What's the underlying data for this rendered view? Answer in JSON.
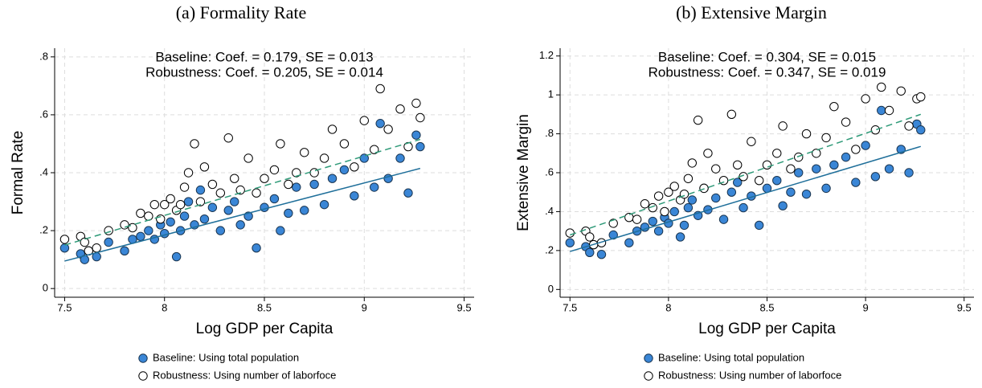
{
  "chart_data": [
    {
      "type": "scatter",
      "title": "(a)  Formality Rate",
      "annotations": [
        "Baseline: Coef. =  0.179, SE =  0.013",
        "Robustness: Coef. =  0.205, SE =  0.014"
      ],
      "xlabel": "Log GDP per Capita",
      "ylabel": "Formal Rate",
      "xlim": [
        7.45,
        9.55
      ],
      "xticks": [
        7.5,
        8,
        8.5,
        9,
        9.5
      ],
      "ylim": [
        -0.03,
        0.83
      ],
      "yticks": [
        0,
        {
          "value": 0.2,
          "label": ".2"
        },
        {
          "value": 0.4,
          "label": ".4"
        },
        {
          "value": 0.6,
          "label": ".6"
        },
        {
          "value": 0.8,
          "label": ".8"
        }
      ],
      "grid": true,
      "legend": "bottom",
      "x": [
        7.5,
        7.58,
        7.6,
        7.62,
        7.66,
        7.72,
        7.8,
        7.84,
        7.88,
        7.92,
        7.95,
        7.98,
        8.0,
        8.03,
        8.06,
        8.08,
        8.1,
        8.12,
        8.15,
        8.18,
        8.2,
        8.24,
        8.28,
        8.32,
        8.35,
        8.38,
        8.42,
        8.46,
        8.5,
        8.55,
        8.58,
        8.62,
        8.66,
        8.7,
        8.75,
        8.8,
        8.84,
        8.9,
        8.95,
        9.0,
        9.05,
        9.08,
        9.12,
        9.18,
        9.22,
        9.26,
        9.28
      ],
      "series": [
        {
          "name": "Baseline: Using total population",
          "color": "#3a86d6",
          "values": [
            0.14,
            0.12,
            0.1,
            0.13,
            0.11,
            0.16,
            0.13,
            0.17,
            0.18,
            0.2,
            0.17,
            0.22,
            0.19,
            0.23,
            0.11,
            0.2,
            0.25,
            0.3,
            0.22,
            0.34,
            0.24,
            0.28,
            0.2,
            0.27,
            0.3,
            0.22,
            0.25,
            0.14,
            0.28,
            0.31,
            0.2,
            0.26,
            0.35,
            0.27,
            0.36,
            0.29,
            0.38,
            0.41,
            0.32,
            0.45,
            0.35,
            0.57,
            0.38,
            0.45,
            0.33,
            0.53,
            0.49
          ]
        },
        {
          "name": "Robustness: Using number of laborfoce",
          "color": "#ffffff",
          "values": [
            0.17,
            0.18,
            0.16,
            0.13,
            0.14,
            0.2,
            0.22,
            0.21,
            0.26,
            0.25,
            0.29,
            0.24,
            0.29,
            0.31,
            0.27,
            0.29,
            0.35,
            0.4,
            0.5,
            0.3,
            0.42,
            0.36,
            0.33,
            0.52,
            0.38,
            0.34,
            0.45,
            0.33,
            0.38,
            0.41,
            0.5,
            0.36,
            0.4,
            0.47,
            0.4,
            0.45,
            0.55,
            0.5,
            0.42,
            0.58,
            0.48,
            0.69,
            0.55,
            0.62,
            0.49,
            0.64,
            0.59
          ]
        }
      ],
      "fits": [
        {
          "color": "#1f6f9a",
          "dash": false,
          "x": [
            7.5,
            9.28
          ],
          "values": [
            0.095,
            0.415
          ]
        },
        {
          "color": "#2e9a78",
          "dash": true,
          "x": [
            7.5,
            9.28
          ],
          "values": [
            0.15,
            0.515
          ]
        }
      ]
    },
    {
      "type": "scatter",
      "title": "(b)  Extensive Margin",
      "annotations": [
        "Baseline: Coef. =  0.304, SE =  0.015",
        "Robustness: Coef. =  0.347, SE =  0.019"
      ],
      "xlabel": "Log GDP per Capita",
      "ylabel": "Extensive Margin",
      "xlim": [
        7.45,
        9.55
      ],
      "xticks": [
        7.5,
        8,
        8.5,
        9,
        9.5
      ],
      "ylim": [
        -0.04,
        1.24
      ],
      "yticks": [
        0,
        {
          "value": 0.2,
          "label": ".2"
        },
        {
          "value": 0.4,
          "label": ".4"
        },
        {
          "value": 0.6,
          "label": ".6"
        },
        {
          "value": 0.8,
          "label": ".8"
        },
        1,
        {
          "value": 1.2,
          "label": "1.2"
        }
      ],
      "grid": true,
      "legend": "bottom",
      "x": [
        7.5,
        7.58,
        7.6,
        7.62,
        7.66,
        7.72,
        7.8,
        7.84,
        7.88,
        7.92,
        7.95,
        7.98,
        8.0,
        8.03,
        8.06,
        8.08,
        8.1,
        8.12,
        8.15,
        8.18,
        8.2,
        8.24,
        8.28,
        8.32,
        8.35,
        8.38,
        8.42,
        8.46,
        8.5,
        8.55,
        8.58,
        8.62,
        8.66,
        8.7,
        8.75,
        8.8,
        8.84,
        8.9,
        8.95,
        9.0,
        9.05,
        9.08,
        9.12,
        9.18,
        9.22,
        9.26,
        9.28
      ],
      "series": [
        {
          "name": "Baseline: Using total population",
          "color": "#3a86d6",
          "values": [
            0.24,
            0.22,
            0.19,
            0.23,
            0.18,
            0.28,
            0.24,
            0.3,
            0.32,
            0.35,
            0.3,
            0.37,
            0.34,
            0.4,
            0.27,
            0.33,
            0.42,
            0.46,
            0.38,
            0.52,
            0.41,
            0.47,
            0.36,
            0.5,
            0.55,
            0.42,
            0.48,
            0.33,
            0.52,
            0.56,
            0.43,
            0.5,
            0.6,
            0.49,
            0.62,
            0.52,
            0.64,
            0.68,
            0.55,
            0.74,
            0.58,
            0.92,
            0.62,
            0.72,
            0.6,
            0.85,
            0.82
          ]
        },
        {
          "name": "Robustness: Using number of laborfoce",
          "color": "#ffffff",
          "values": [
            0.29,
            0.3,
            0.27,
            0.23,
            0.24,
            0.34,
            0.37,
            0.36,
            0.44,
            0.42,
            0.48,
            0.4,
            0.5,
            0.53,
            0.46,
            0.49,
            0.57,
            0.65,
            0.87,
            0.52,
            0.7,
            0.62,
            0.56,
            0.9,
            0.64,
            0.58,
            0.76,
            0.56,
            0.64,
            0.7,
            0.84,
            0.62,
            0.68,
            0.8,
            0.7,
            0.78,
            0.94,
            0.86,
            0.72,
            0.98,
            0.82,
            1.04,
            0.92,
            1.02,
            0.84,
            0.98,
            0.99
          ]
        }
      ],
      "fits": [
        {
          "color": "#1f6f9a",
          "dash": false,
          "x": [
            7.5,
            9.28
          ],
          "values": [
            0.195,
            0.735
          ]
        },
        {
          "color": "#2e9a78",
          "dash": true,
          "x": [
            7.5,
            9.28
          ],
          "values": [
            0.28,
            0.9
          ]
        }
      ]
    }
  ]
}
